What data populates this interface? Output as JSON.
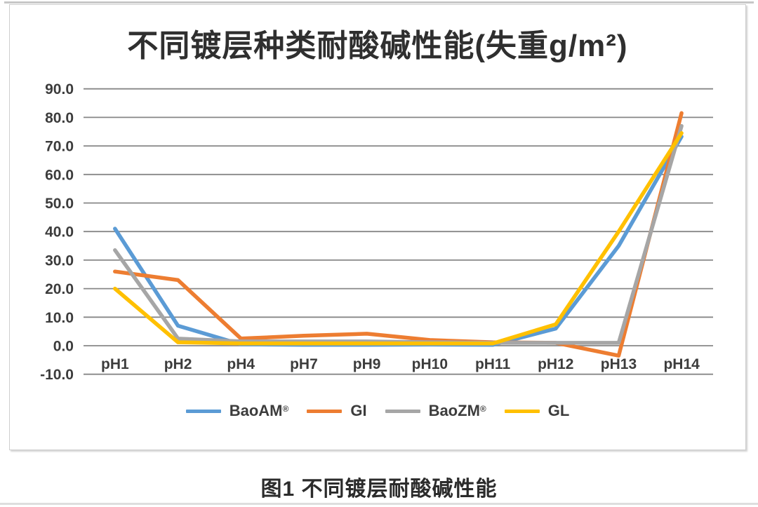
{
  "page": {
    "caption": "图1 不同镀层耐酸碱性能"
  },
  "chart_data": {
    "type": "line",
    "title": "不同镀层种类耐酸碱性能(失重g/m²)",
    "categories": [
      "pH1",
      "pH2",
      "pH4",
      "pH7",
      "pH9",
      "pH10",
      "pH11",
      "pH12",
      "pH13",
      "pH14"
    ],
    "series": [
      {
        "name": "BaoAM",
        "mark": "®",
        "color": "#5B9BD5",
        "values": [
          41,
          7,
          0.5,
          0.3,
          0.3,
          0.4,
          0.3,
          6,
          35,
          73.3
        ]
      },
      {
        "name": "GI",
        "mark": "",
        "color": "#ED7D31",
        "values": [
          26,
          23,
          2.5,
          3.5,
          4.2,
          2,
          1.2,
          1,
          -3.5,
          81.5
        ]
      },
      {
        "name": "BaoZM",
        "mark": "®",
        "color": "#A6A6A6",
        "values": [
          33.5,
          2.5,
          1.5,
          1.5,
          1.5,
          1.2,
          1,
          1,
          1,
          77
        ]
      },
      {
        "name": "GL",
        "mark": "",
        "color": "#FFC000",
        "values": [
          20,
          1.2,
          0.8,
          0.8,
          0.8,
          0.8,
          0.8,
          7.5,
          40,
          74.5
        ]
      }
    ],
    "ylim": [
      -10,
      90
    ],
    "ytick_step": 10,
    "ytick_decimals": 1,
    "grid": true,
    "legend_position": "bottom",
    "gridline_color": "#878787",
    "axis_text_color": "#3c3c3c"
  }
}
